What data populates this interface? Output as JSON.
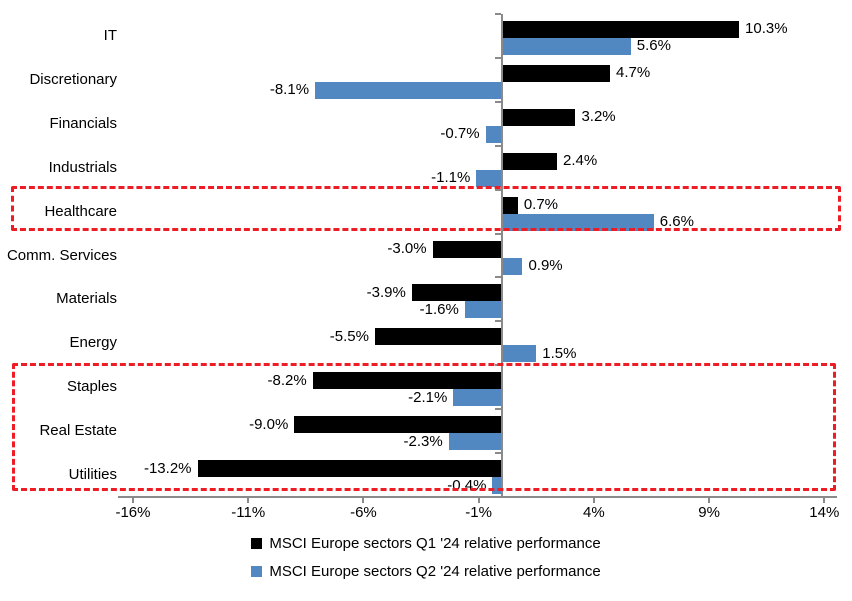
{
  "chart_data": {
    "type": "bar",
    "orientation": "horizontal",
    "title": "",
    "categories": [
      "IT",
      "Discretionary",
      "Financials",
      "Industrials",
      "Healthcare",
      "Comm. Services",
      "Materials",
      "Energy",
      "Staples",
      "Real Estate",
      "Utilities"
    ],
    "series": [
      {
        "name": "MSCI Europe sectors Q1 '24 relative performance",
        "color": "#000000",
        "values": [
          10.3,
          4.7,
          3.2,
          2.4,
          0.7,
          -3.0,
          -3.9,
          -5.5,
          -8.2,
          -9.0,
          -13.2
        ],
        "labels": [
          "10.3%",
          "4.7%",
          "3.2%",
          "2.4%",
          "0.7%",
          "-3.0%",
          "-3.9%",
          "-5.5%",
          "-8.2%",
          "-9.0%",
          "-13.2%"
        ]
      },
      {
        "name": "MSCI Europe sectors Q2 '24 relative performance",
        "color": "#5288c2",
        "values": [
          5.6,
          -8.1,
          -0.7,
          -1.1,
          6.6,
          0.9,
          -1.6,
          1.5,
          -2.1,
          -2.3,
          -0.4
        ],
        "labels": [
          "5.6%",
          "-8.1%",
          "-0.7%",
          "-1.1%",
          "6.6%",
          "0.9%",
          "-1.6%",
          "1.5%",
          "-2.1%",
          "-2.3%",
          "-0.4%"
        ]
      }
    ],
    "x_axis": {
      "min": -16.65,
      "max": 14.55,
      "grid": false,
      "ticks": [
        {
          "label": "-16%",
          "value": -16
        },
        {
          "label": "-11%",
          "value": -11
        },
        {
          "label": "-6%",
          "value": -6
        },
        {
          "label": "-1%",
          "value": -1
        },
        {
          "label": "4%",
          "value": 4
        },
        {
          "label": "9%",
          "value": 9
        },
        {
          "label": "14%",
          "value": 14
        }
      ]
    },
    "axis_color": "#8a8a8a",
    "data_label_color": "#000000",
    "legend_position": "bottom",
    "annotations": [
      {
        "id": "healthcare-highlight",
        "shape": "dashed-rectangle",
        "color": "#ee1c25",
        "categories": [
          "Healthcare"
        ]
      },
      {
        "id": "staples-realestate-utilities-highlight",
        "shape": "dashed-rectangle",
        "color": "#ee1c25",
        "categories": [
          "Staples",
          "Real Estate",
          "Utilities"
        ]
      }
    ]
  }
}
